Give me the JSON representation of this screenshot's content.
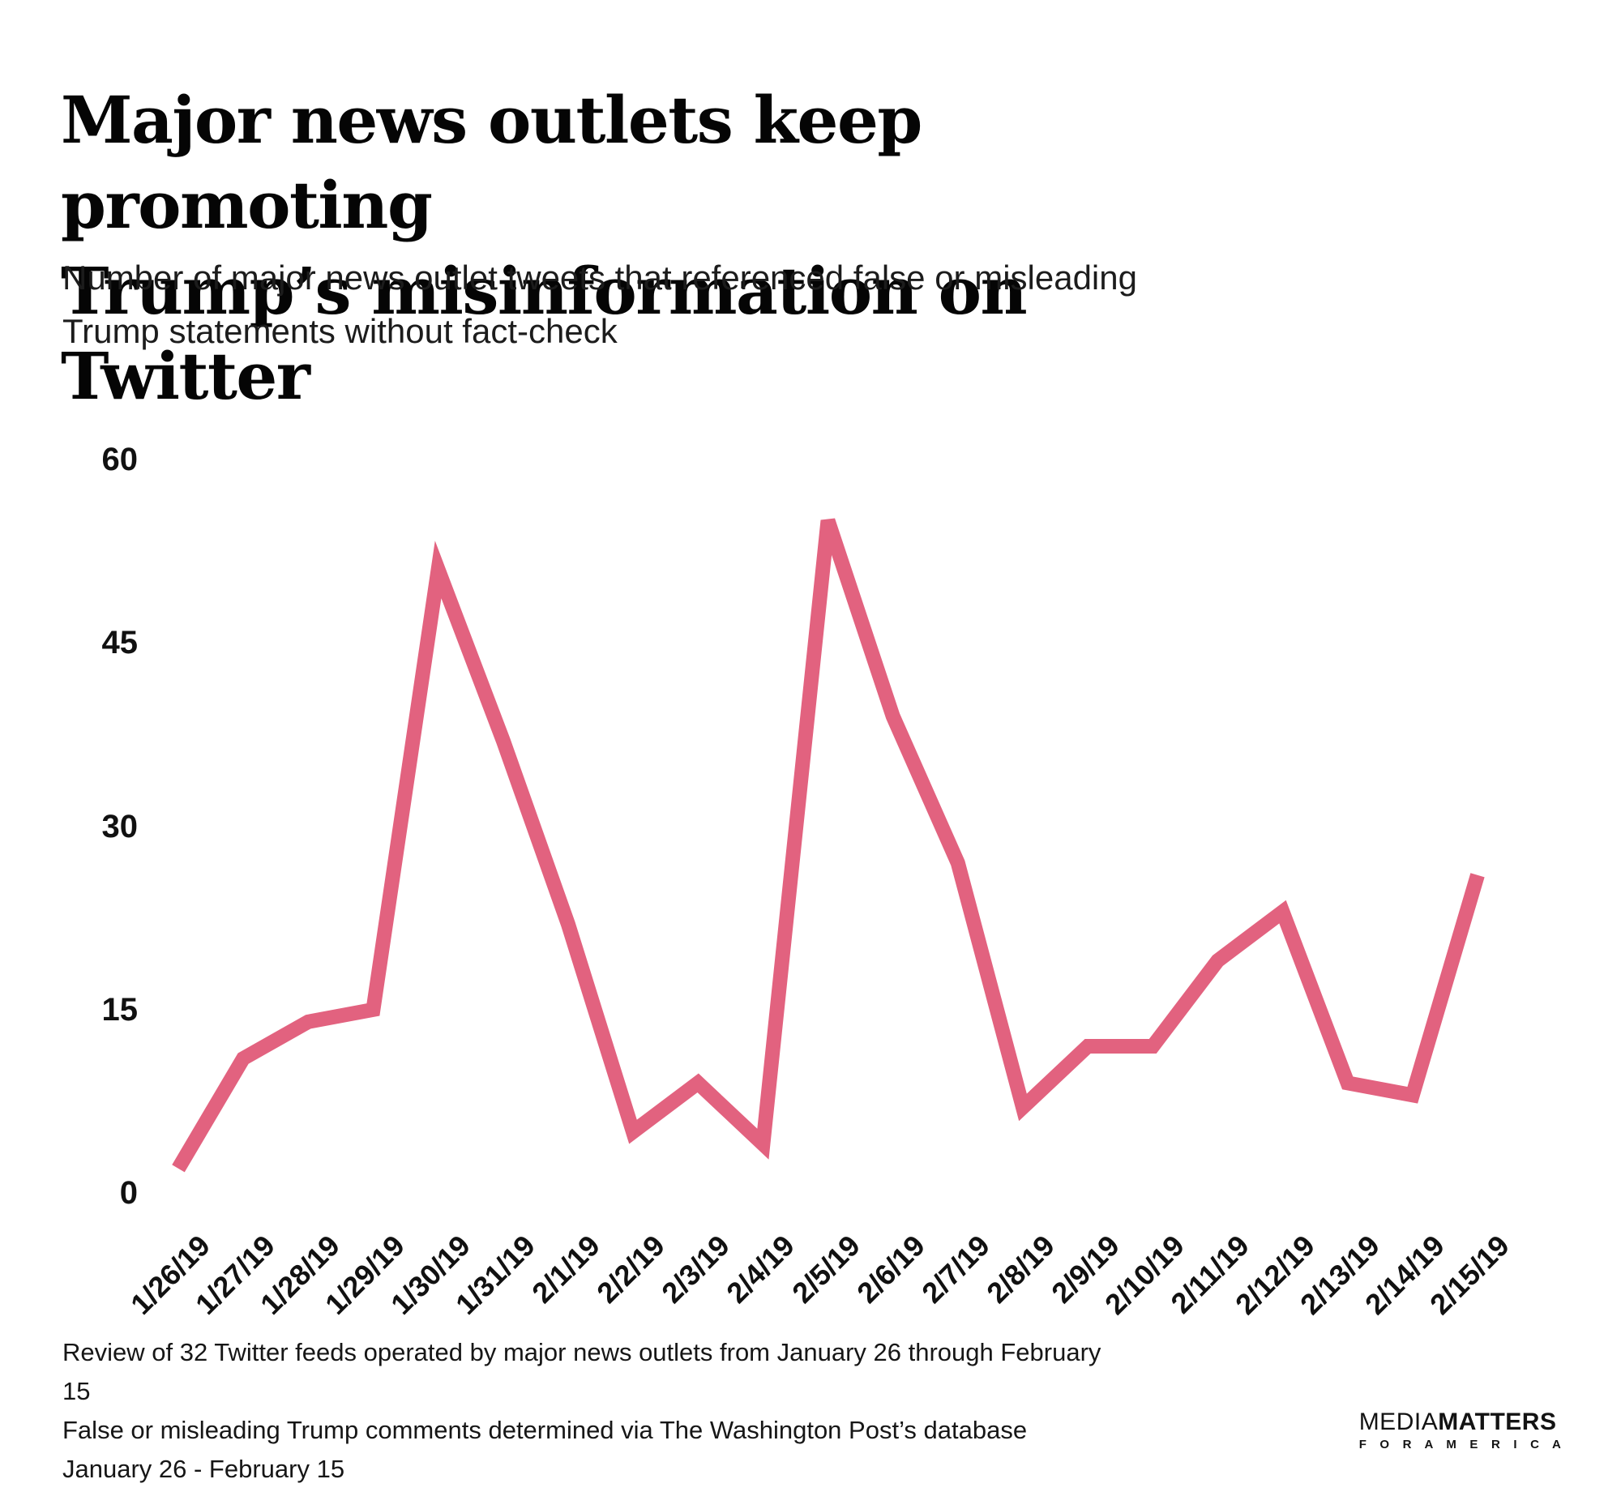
{
  "title": {
    "line1": "Major news outlets keep promoting",
    "line2": "Trump’s misinformation on Twitter"
  },
  "subtitle": "Number of major news outlet tweets that referenced false or misleading Trump statements without fact-check",
  "chart_data": {
    "type": "line",
    "categories": [
      "1/26/19",
      "1/27/19",
      "1/28/19",
      "1/29/19",
      "1/30/19",
      "1/31/19",
      "2/1/19",
      "2/2/19",
      "2/3/19",
      "2/4/19",
      "2/5/19",
      "2/6/19",
      "2/7/19",
      "2/8/19",
      "2/9/19",
      "2/10/19",
      "2/11/19",
      "2/12/19",
      "2/13/19",
      "2/14/19",
      "2/15/19"
    ],
    "values": [
      2,
      11,
      14,
      15,
      51,
      37,
      22,
      5,
      9,
      4,
      55,
      39,
      27,
      7,
      12,
      12,
      19,
      23,
      9,
      8,
      26
    ],
    "title": "",
    "xlabel": "",
    "ylabel": "",
    "ylim": [
      0,
      60
    ],
    "yticks": [
      0,
      15,
      30,
      45,
      60
    ],
    "grid": false,
    "legend": "none",
    "line_color": "#e2627f"
  },
  "footer": {
    "line1": "Review of 32 Twitter feeds operated by major news outlets from January 26 through February 15",
    "line2": "False or misleading Trump comments determined via The Washington Post’s database",
    "line3": "January 26 - February 15"
  },
  "logo": {
    "media": "MEDIA",
    "matters": "MATTERS",
    "tagline": "F O R   A M E R I C A"
  }
}
